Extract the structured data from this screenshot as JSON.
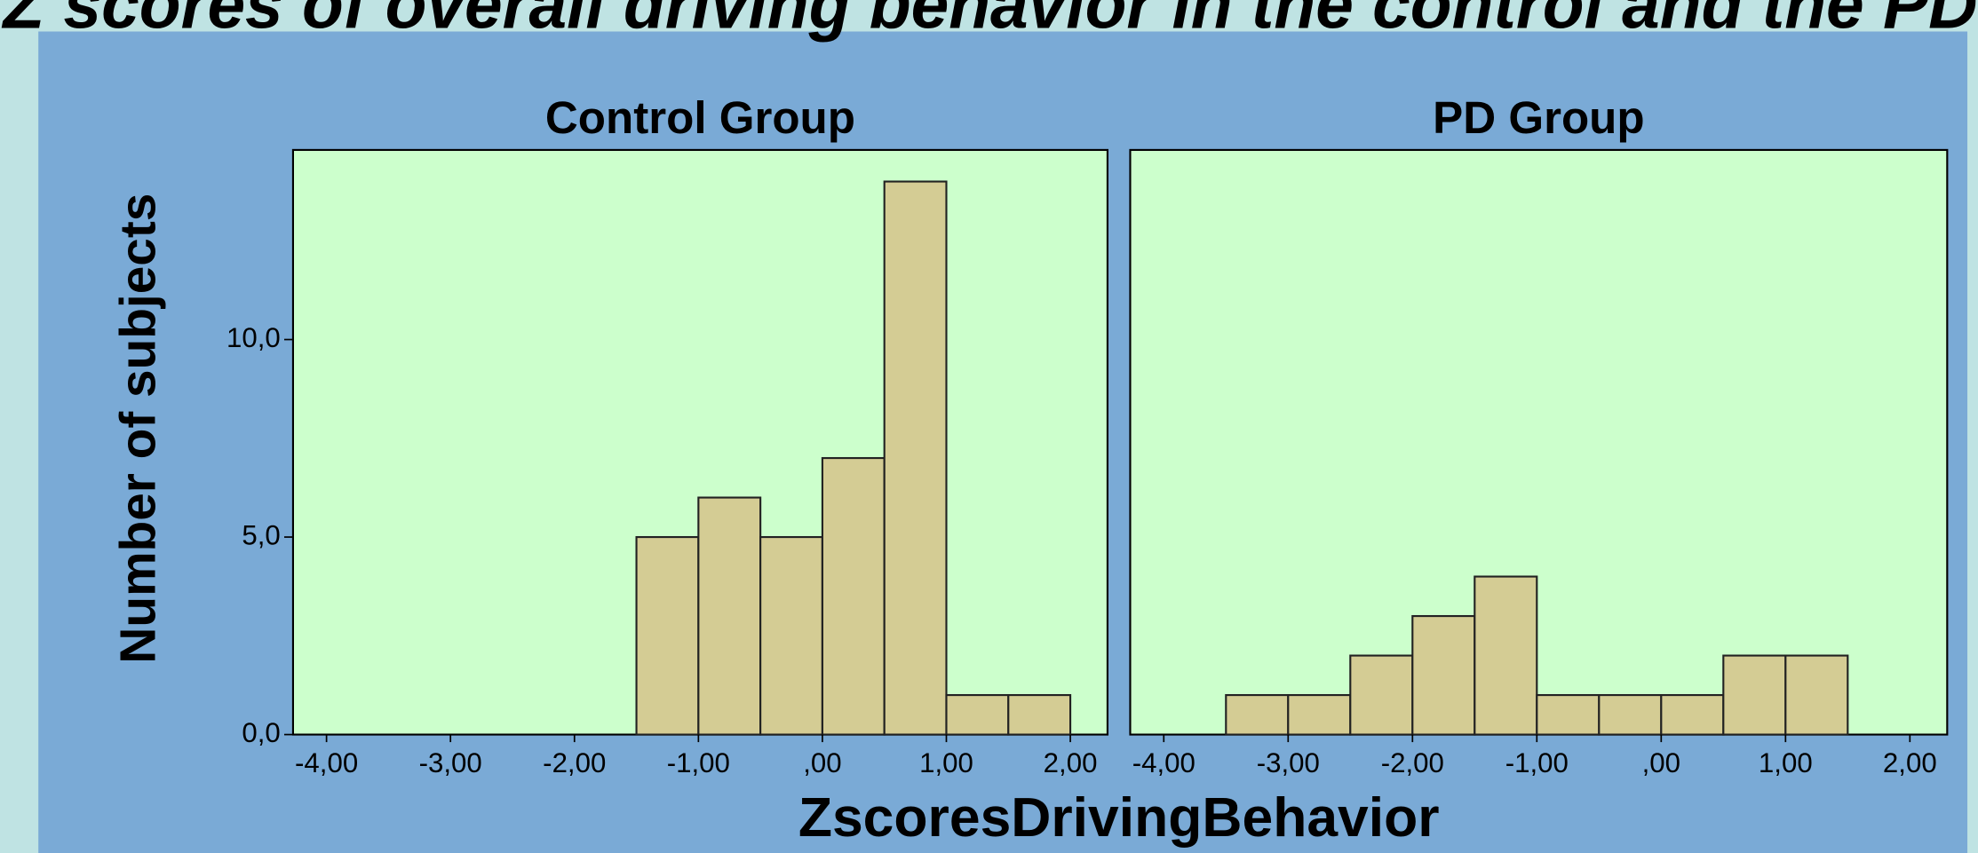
{
  "chart_data": {
    "type": "histogram",
    "title": "Z scores of overall driving behavior in the control and the PD group",
    "xlabel": "ZscoresDrivingBehavior",
    "ylabel": "Number of subjects",
    "color": "#d4cc94",
    "plot_background": "#ccffcc",
    "xlim": [
      -4.27,
      2.3
    ],
    "xticks": [
      {
        "value": -4,
        "label": "-4,00"
      },
      {
        "value": -3,
        "label": "-3,00"
      },
      {
        "value": -2,
        "label": "-2,00"
      },
      {
        "value": -1,
        "label": "-1,00"
      },
      {
        "value": 0,
        "label": ",00"
      },
      {
        "value": 1,
        "label": "1,00"
      },
      {
        "value": 2,
        "label": "2,00"
      }
    ],
    "ylim": [
      0,
      14.8
    ],
    "yticks": [
      {
        "value": 0,
        "label": "0,0"
      },
      {
        "value": 5,
        "label": "5,0"
      },
      {
        "value": 10,
        "label": "10,0"
      }
    ],
    "panels": [
      {
        "title": "Control Group",
        "bins": [
          -1.5,
          -1,
          -0.5,
          0,
          0.5,
          1,
          1.5,
          2
        ],
        "counts": [
          5,
          6,
          5,
          7,
          14,
          1,
          1
        ]
      },
      {
        "title": "PD Group",
        "bins": [
          -3.5,
          -3,
          -2.5,
          -2,
          -1.5,
          -1,
          -0.5,
          0,
          0.5,
          1,
          1.5
        ],
        "counts": [
          1,
          1,
          2,
          3,
          4,
          1,
          1,
          1,
          2,
          2
        ]
      }
    ]
  }
}
